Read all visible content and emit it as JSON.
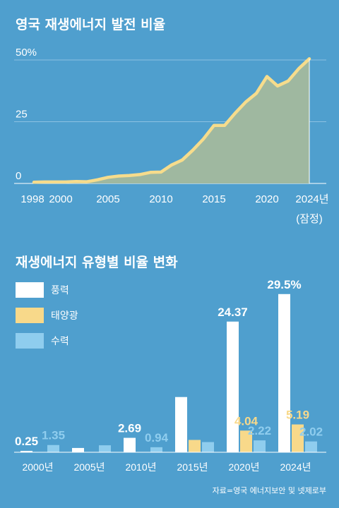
{
  "colors": {
    "background": "#4f9fce",
    "area_fill": "#9fb8a0",
    "line": "#f6dc8c",
    "wind": "#ffffff",
    "solar": "#f8d98a",
    "hydro": "#8fcdee",
    "grid": "#8cc2e2"
  },
  "source": "자료=영국 에너지보안 및 넷제로부",
  "chart_data": [
    {
      "type": "area",
      "title": "영국 재생에너지 발전 비율",
      "x_tick_labels": [
        "1998",
        "2000",
        "2005",
        "2010",
        "2015",
        "2020",
        "2024년"
      ],
      "x_tick_values": [
        1998,
        2000,
        2005,
        2010,
        2015,
        2020,
        2024
      ],
      "x_note": "(잠정)",
      "y_tick_labels": [
        "0",
        "25",
        "50%"
      ],
      "y_tick_values": [
        0,
        25,
        50
      ],
      "ylim": [
        0,
        50
      ],
      "xlim": [
        1998,
        2024
      ],
      "grid": true,
      "x": [
        1998,
        1999,
        2000,
        2001,
        2002,
        2003,
        2004,
        2005,
        2006,
        2007,
        2008,
        2009,
        2010,
        2011,
        2012,
        2013,
        2014,
        2015,
        2016,
        2017,
        2018,
        2019,
        2020,
        2021,
        2022,
        2023,
        2024
      ],
      "values": [
        0.5,
        0.6,
        0.6,
        0.6,
        0.8,
        0.7,
        1.5,
        2.5,
        3,
        3.2,
        3.6,
        4.5,
        4.6,
        7.5,
        9.5,
        13.5,
        18,
        23.5,
        23.5,
        28.5,
        33,
        36.5,
        43.3,
        39.5,
        41.5,
        46.5,
        50.5
      ]
    },
    {
      "type": "bar",
      "title": "재생에너지 유형별 비율 변화",
      "categories": [
        "2000년",
        "2005년",
        "2010년",
        "2015년",
        "2020년",
        "2024년"
      ],
      "series": [
        {
          "name": "풍력",
          "values": [
            0.25,
            0.8,
            2.69,
            10.3,
            24.37,
            29.5
          ]
        },
        {
          "name": "태양광",
          "values": [
            0,
            0,
            0,
            2.3,
            4.04,
            5.19
          ]
        },
        {
          "name": "수력",
          "values": [
            1.35,
            1.3,
            0.94,
            1.9,
            2.22,
            2.02
          ]
        }
      ],
      "data_labels": [
        {
          "category": 0,
          "series": 0,
          "text": "0.25"
        },
        {
          "category": 0,
          "series": 2,
          "text": "1.35"
        },
        {
          "category": 2,
          "series": 0,
          "text": "2.69"
        },
        {
          "category": 2,
          "series": 2,
          "text": "0.94"
        },
        {
          "category": 4,
          "series": 0,
          "text": "24.37"
        },
        {
          "category": 4,
          "series": 1,
          "text": "4.04"
        },
        {
          "category": 4,
          "series": 2,
          "text": "2.22"
        },
        {
          "category": 5,
          "series": 0,
          "text": "29.5%"
        },
        {
          "category": 5,
          "series": 1,
          "text": "5.19"
        },
        {
          "category": 5,
          "series": 2,
          "text": "2.02"
        }
      ],
      "ylim": [
        0,
        30
      ],
      "legend_position": "top-left"
    }
  ]
}
